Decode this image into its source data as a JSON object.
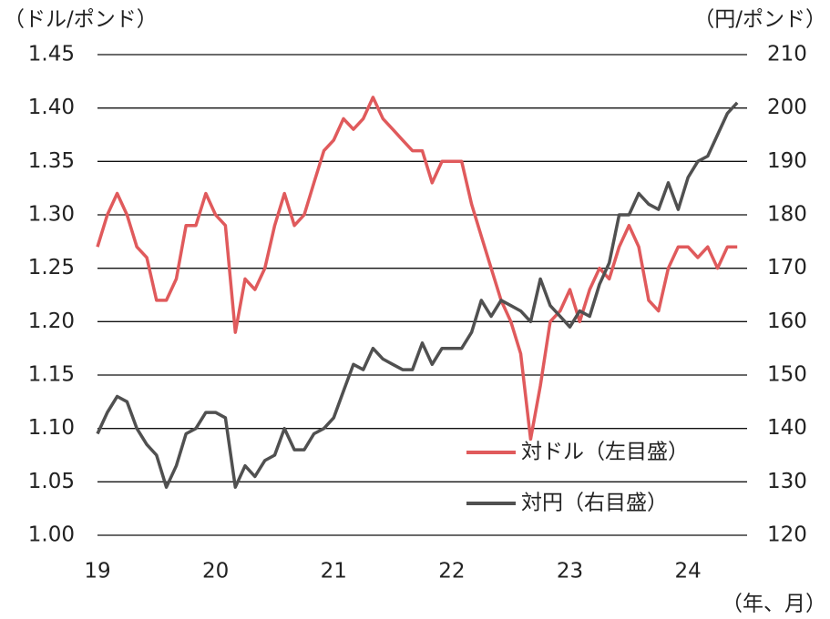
{
  "chart_data": {
    "type": "line",
    "y_label": "（ドル/ポンド）",
    "y2_label": "（円/ポンド）",
    "x_label": "（年、月）",
    "x": [
      19,
      19.083,
      19.167,
      19.25,
      19.333,
      19.417,
      19.5,
      19.583,
      19.667,
      19.75,
      19.833,
      19.917,
      20,
      20.083,
      20.167,
      20.25,
      20.333,
      20.417,
      20.5,
      20.583,
      20.667,
      20.75,
      20.833,
      20.917,
      21,
      21.083,
      21.167,
      21.25,
      21.333,
      21.417,
      21.5,
      21.583,
      21.667,
      21.75,
      21.833,
      21.917,
      22,
      22.083,
      22.167,
      22.25,
      22.333,
      22.417,
      22.5,
      22.583,
      22.667,
      22.75,
      22.833,
      22.917,
      23,
      23.083,
      23.167,
      23.25,
      23.333,
      23.417,
      23.5,
      23.583,
      23.667,
      23.75,
      23.833,
      23.917,
      24,
      24.083,
      24.167,
      24.25,
      24.333,
      24.417
    ],
    "xlim": [
      19,
      24.5
    ],
    "xticks": [
      19,
      20,
      21,
      22,
      23,
      24
    ],
    "ylim": [
      1.0,
      1.45
    ],
    "yticks": [
      {
        "value": 1.0,
        "label": "1.00"
      },
      1.05,
      {
        "value": 1.1,
        "label": "1.10"
      },
      1.15,
      {
        "value": 1.2,
        "label": "1.20"
      },
      1.25,
      {
        "value": 1.3,
        "label": "1.30"
      },
      1.35,
      {
        "value": 1.4,
        "label": "1.40"
      },
      1.45
    ],
    "y2lim": [
      120,
      210
    ],
    "y2ticks": [
      120,
      130,
      140,
      150,
      160,
      170,
      180,
      190,
      200,
      210
    ],
    "grid": true,
    "series": [
      {
        "name": "対ドル（左目盛）",
        "color": "#e05a5c",
        "values": [
          1.27,
          1.3,
          1.32,
          1.3,
          1.27,
          1.26,
          1.22,
          1.22,
          1.24,
          1.29,
          1.29,
          1.32,
          1.3,
          1.29,
          1.19,
          1.24,
          1.23,
          1.25,
          1.29,
          1.32,
          1.29,
          1.3,
          1.33,
          1.36,
          1.37,
          1.39,
          1.38,
          1.39,
          1.41,
          1.39,
          1.38,
          1.37,
          1.36,
          1.36,
          1.33,
          1.35,
          1.35,
          1.35,
          1.31,
          1.28,
          1.25,
          1.22,
          1.2,
          1.17,
          1.09,
          1.14,
          1.2,
          1.21,
          1.23,
          1.2,
          1.23,
          1.25,
          1.24,
          1.27,
          1.29,
          1.27,
          1.22,
          1.21,
          1.25,
          1.27,
          1.27,
          1.26,
          1.27,
          1.25,
          1.27,
          1.27
        ]
      },
      {
        "name": "対円（右目盛）",
        "color": "#505050",
        "axis": "y2",
        "values": [
          139,
          143,
          146,
          145,
          140,
          137,
          135,
          129,
          133,
          139,
          140,
          143,
          143,
          142,
          129,
          133,
          131,
          134,
          135,
          140,
          136,
          136,
          139,
          140,
          142,
          147,
          152,
          151,
          155,
          153,
          152,
          151,
          151,
          156,
          152,
          155,
          155,
          155,
          158,
          164,
          161,
          164,
          163,
          162,
          160,
          168,
          163,
          161,
          159,
          162,
          161,
          167,
          171,
          180,
          180,
          184,
          182,
          181,
          186,
          181,
          187,
          190,
          191,
          195,
          199,
          201
        ]
      }
    ]
  }
}
